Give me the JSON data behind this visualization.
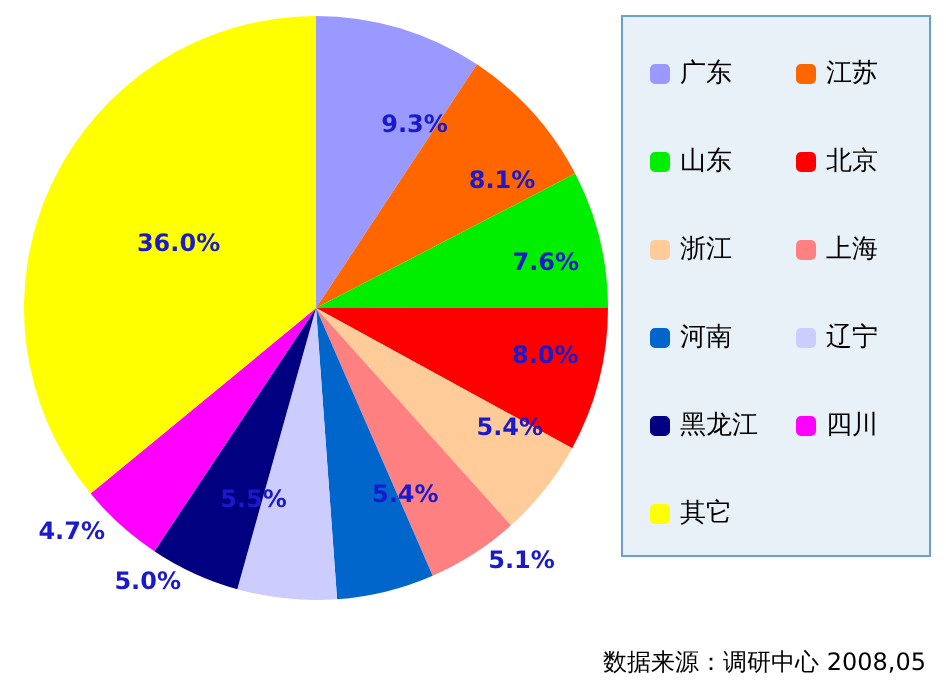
{
  "chart_data": {
    "type": "pie",
    "categories": [
      "广东",
      "江苏",
      "山东",
      "北京",
      "浙江",
      "上海",
      "河南",
      "辽宁",
      "黑龙江",
      "四川",
      "其它"
    ],
    "values": [
      9.3,
      8.1,
      7.6,
      8.0,
      5.4,
      5.1,
      5.4,
      5.5,
      5.0,
      4.7,
      36.0
    ],
    "value_labels": [
      "9.3%",
      "8.1%",
      "7.6%",
      "8.0%",
      "5.4%",
      "5.1%",
      "5.4%",
      "5.5%",
      "5.0%",
      "4.7%",
      "36.0%"
    ],
    "colors": [
      "#9999ff",
      "#ff6600",
      "#00ee00",
      "#ff0000",
      "#ffcc99",
      "#ff8080",
      "#0066cc",
      "#ccccff",
      "#000080",
      "#ff00ff",
      "#ffff00"
    ],
    "legend": "right",
    "annotations": [
      "数据来源：调研中心 2008,05"
    ]
  }
}
